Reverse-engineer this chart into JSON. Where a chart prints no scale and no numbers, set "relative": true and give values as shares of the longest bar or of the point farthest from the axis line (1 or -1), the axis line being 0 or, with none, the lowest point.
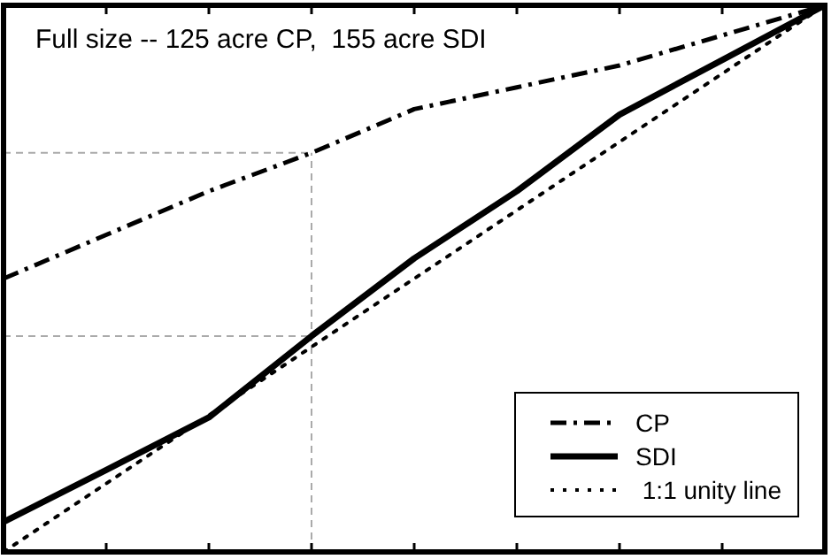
{
  "chart_data": {
    "type": "line",
    "title": "Full size -- 125 acre CP,  155 acre SDI",
    "relative": true,
    "categories": [
      null,
      null,
      null,
      null,
      null,
      null,
      null,
      null,
      null
    ],
    "series": [
      {
        "name": "CP",
        "color": "#000000",
        "line_style": "dashed",
        "values": [
          0.5,
          0.58,
          0.66,
          0.73,
          0.81,
          0.85,
          0.89,
          0.945,
          1
        ]
      },
      {
        "name": "SDI",
        "color": "#000000",
        "line_style": "solid",
        "values": [
          0.055,
          0.15,
          0.246,
          0.395,
          0.537,
          0.66,
          0.8,
          0.9,
          1
        ]
      },
      {
        "name": " 1:1 unity line",
        "color": "#000000",
        "line_style": "dotted",
        "values": [
          0,
          0.125,
          0.25,
          0.375,
          0.5,
          0.625,
          0.75,
          0.875,
          1
        ]
      }
    ],
    "ref_lines": [
      {
        "axis": "y",
        "value": 0.73,
        "color": "#aaaaaa",
        "line_style": "dashed"
      },
      {
        "axis": "y",
        "value": 0.395,
        "color": "#aaaaaa",
        "line_style": "dashed"
      }
    ],
    "legend": "bottom right",
    "grid": false,
    "marker": "none"
  }
}
